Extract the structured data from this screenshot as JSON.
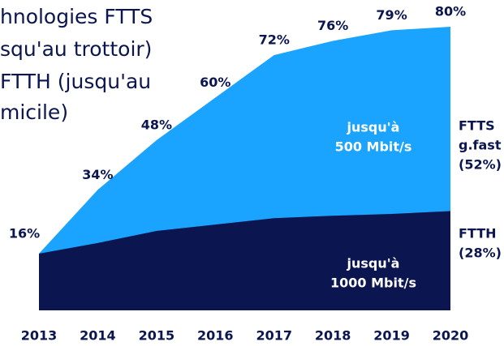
{
  "chart_data": {
    "type": "area",
    "title_lines": [
      "hnologies FTTS",
      "squ'au trottoir)",
      "FTTH (jusqu'au",
      "micile)"
    ],
    "categories": [
      "2013",
      "2014",
      "2015",
      "2016",
      "2017",
      "2018",
      "2019",
      "2020"
    ],
    "totals": [
      16,
      34,
      48,
      60,
      72,
      76,
      79,
      80
    ],
    "totals_labels": [
      "16%",
      "34%",
      "48%",
      "60%",
      "72%",
      "76%",
      "79%",
      "80%"
    ],
    "totals_color": "#1aa3ff",
    "series": [
      {
        "name": "FTTH",
        "color": "#0b1650",
        "values": [
          16,
          19,
          22.4,
          24.2,
          26,
          26.7,
          27.2,
          28
        ]
      }
    ],
    "ylim": [
      0,
      80
    ],
    "annotations": {
      "ftts_area": [
        "jusqu'à",
        "500 Mbit/s"
      ],
      "ftth_area": [
        "jusqu'à",
        "1000 Mbit/s"
      ],
      "ftts_side": [
        "FTTS",
        "g.fast",
        "(52%)"
      ],
      "ftth_side": [
        "FTTH",
        "(28%)"
      ]
    },
    "ftts_share": 52,
    "ftth_share": 28
  }
}
